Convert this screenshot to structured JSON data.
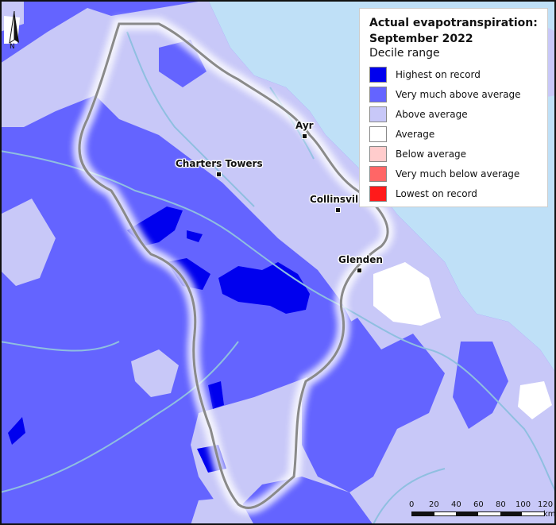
{
  "legend": {
    "title_line1": "Actual evapotranspiration:",
    "title_line2": "September 2022",
    "subtitle": "Decile range",
    "items": [
      {
        "label": "Highest on record",
        "color": "#0000ee"
      },
      {
        "label": "Very much above average",
        "color": "#6464ff"
      },
      {
        "label": "Above average",
        "color": "#c8c8f8"
      },
      {
        "label": "Average",
        "color": "#ffffff"
      },
      {
        "label": "Below average",
        "color": "#ffcccc"
      },
      {
        "label": "Very much below average",
        "color": "#ff6666"
      },
      {
        "label": "Lowest on record",
        "color": "#ff1a1a"
      }
    ]
  },
  "towns": [
    {
      "name": "Ayr"
    },
    {
      "name": "Charters Towers"
    },
    {
      "name": "Collinsvil"
    },
    {
      "name": "Glenden"
    }
  ],
  "north_arrow": {
    "label": "N",
    "icon": "north-arrow-icon"
  },
  "scale": {
    "ticks": [
      "0",
      "20",
      "40",
      "60",
      "80",
      "100",
      "120"
    ],
    "unit": "km"
  },
  "colors": {
    "sea": "#bfe0f7",
    "river": "#8fbfe0",
    "basin_boundary": "#8a8a8a"
  }
}
